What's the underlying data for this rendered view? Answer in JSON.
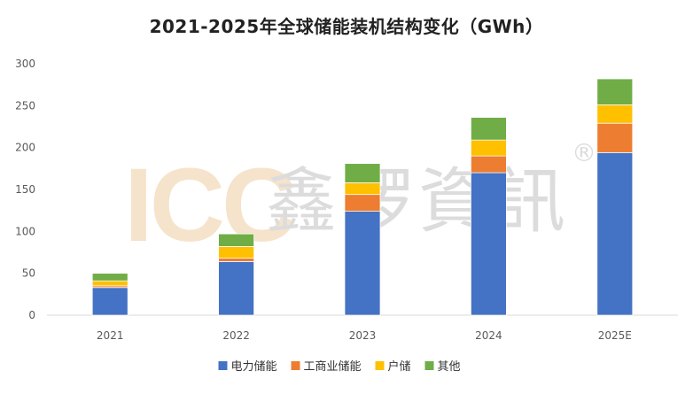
{
  "chart_data": {
    "type": "bar",
    "stacked": true,
    "title": "2021-2025年全球储能装机结构变化（GWh）",
    "categories": [
      "2021",
      "2022",
      "2023",
      "2024",
      "2025E"
    ],
    "series": [
      {
        "name": "电力储能",
        "color": "#4472C4",
        "values": [
          33,
          64,
          124,
          170,
          194
        ]
      },
      {
        "name": "工商业储能",
        "color": "#ED7D31",
        "values": [
          2,
          4,
          20,
          20,
          35
        ]
      },
      {
        "name": "户储",
        "color": "#FFC000",
        "values": [
          6,
          14,
          14,
          19,
          22
        ]
      },
      {
        "name": "其他",
        "color": "#70AD47",
        "values": [
          9,
          15,
          23,
          27,
          31
        ]
      }
    ],
    "ylim": [
      0,
      300
    ],
    "yticks": [
      0,
      50,
      100,
      150,
      200,
      250,
      300
    ],
    "grid": false,
    "legend_position": "bottom"
  },
  "watermark": {
    "latin": "ICC",
    "chinese": "鑫椤資訊",
    "mark": "®"
  }
}
